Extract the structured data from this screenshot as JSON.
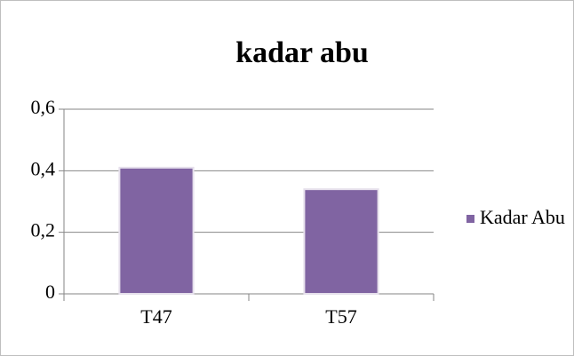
{
  "chart_data": {
    "type": "bar",
    "title": "kadar abu",
    "categories": [
      "T47",
      "T57"
    ],
    "series": [
      {
        "name": "Kadar Abu",
        "color": "#8064a2",
        "values": [
          0.41,
          0.34
        ]
      }
    ],
    "ylim": [
      0,
      0.6
    ],
    "yticks": [
      0,
      {
        "value": 0.2,
        "label": "0,2"
      },
      {
        "value": 0.4,
        "label": "0,4"
      },
      {
        "value": 0.6,
        "label": "0,6"
      }
    ],
    "grid": true,
    "legend": "right"
  }
}
